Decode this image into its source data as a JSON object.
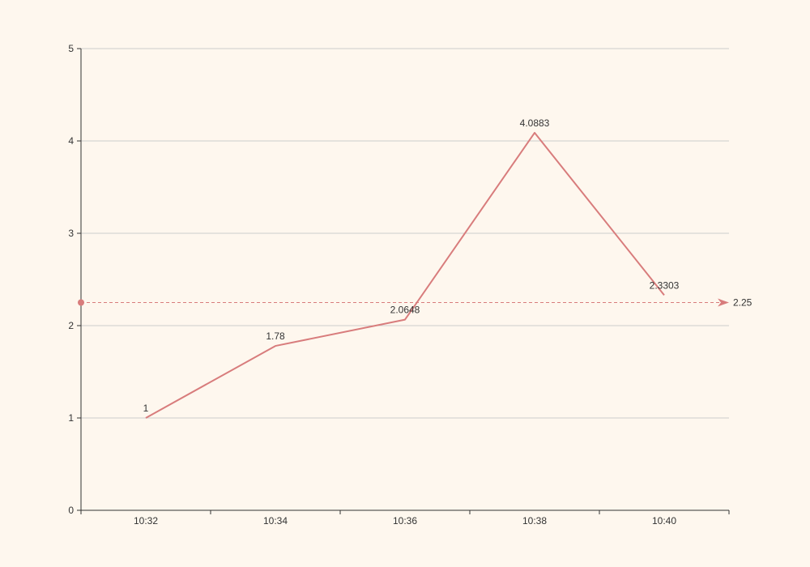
{
  "chart_data": {
    "type": "line",
    "categories": [
      "10:32",
      "10:34",
      "10:36",
      "10:38",
      "10:40"
    ],
    "series": [
      {
        "values": [
          1,
          1.78,
          2.0648,
          4.0883,
          2.3303
        ]
      }
    ],
    "data_labels": [
      "1",
      "1.78",
      "2.0648",
      "4.0883",
      "2.3303"
    ],
    "y_ticks": [
      "0",
      "1",
      "2",
      "3",
      "4",
      "5"
    ],
    "ylim": [
      0,
      5
    ],
    "grid": true,
    "mark_line": {
      "value": 2.25,
      "label": "2.25"
    },
    "colors": {
      "line": "#d87c7c",
      "grid": "#cccccc",
      "axis": "#333333",
      "background": "#fef7ee"
    }
  }
}
